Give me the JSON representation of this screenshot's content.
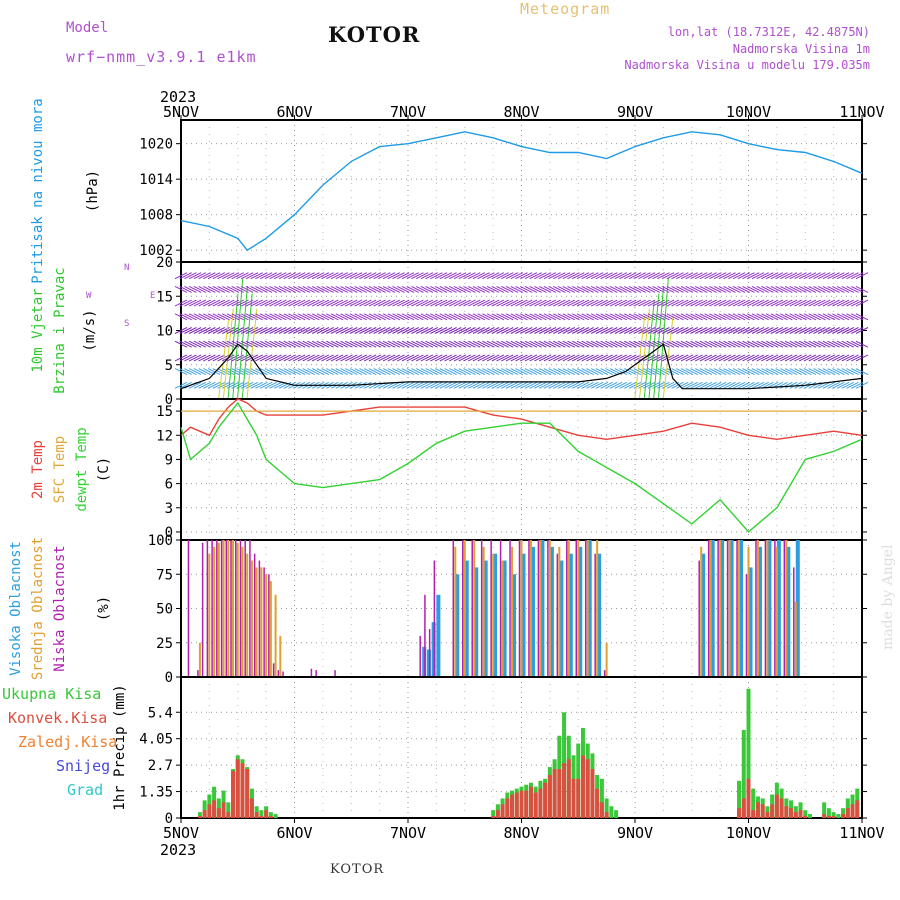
{
  "header": {
    "model_label": "Model",
    "model_name": "wrf−nmm_v3.9.1 e1km",
    "city": "KOTOR",
    "chart_title": "Meteogram",
    "coords": "lon,lat (18.7312E, 42.4875N)",
    "elevation": "Nadmorska Visina 1m",
    "model_elevation": "Nadmorska Visina u modelu 179.035m",
    "watermark": "made by Angel",
    "footer_city": "KOTOR"
  },
  "colors": {
    "pressure": "#1e9be6",
    "temp2m": "#e8403a",
    "sfc_temp": "#e0a83a",
    "dewpoint": "#33d233",
    "high_cloud": "#2a9ee0",
    "mid_cloud": "#e0a030",
    "low_cloud": "#b020b0",
    "total_precip": "#3ac83a",
    "conv_precip": "#d85040",
    "freezing_precip": "#f08030",
    "snow": "#4848e0",
    "hail": "#30c8c8",
    "header_purple": "#b050d0",
    "header_orange": "#e8c070"
  },
  "chart_data": [
    {
      "type": "line",
      "panel": "pressure",
      "ylabel_lines": [
        "Pritisak na nivou mora",
        "(hPa)"
      ],
      "ylim": [
        1000,
        1024
      ],
      "yticks": [
        1002,
        1008,
        1014,
        1020
      ],
      "x_hours": [
        0,
        6,
        12,
        14,
        18,
        24,
        30,
        36,
        42,
        48,
        54,
        60,
        66,
        72,
        78,
        84,
        90,
        96,
        102,
        108,
        114,
        120,
        126,
        132,
        138,
        144
      ],
      "series": [
        {
          "key": "pressure",
          "values": [
            1007,
            1006,
            1004,
            1002,
            1004,
            1008,
            1013,
            1017,
            1019.5,
            1020,
            1021,
            1022,
            1021,
            1019.5,
            1018.5,
            1018.5,
            1017.5,
            1019.5,
            1021,
            1022,
            1021.5,
            1020,
            1019,
            1018.5,
            1017,
            1015
          ]
        }
      ]
    },
    {
      "type": "wind",
      "panel": "wind",
      "ylabel_lines": [
        "10m Vjetar",
        "Brzina i Pravac",
        "(m/s)"
      ],
      "direction_key": [
        "W",
        "E",
        "N",
        "S"
      ],
      "ylim": [
        0,
        20
      ],
      "yticks": [
        0,
        5,
        10,
        15,
        20
      ],
      "x_hours": [
        0,
        6,
        8,
        10,
        12,
        14,
        16,
        18,
        24,
        36,
        48,
        60,
        72,
        84,
        90,
        94,
        98,
        100,
        102,
        104,
        106,
        108,
        120,
        132,
        144
      ],
      "series": [
        {
          "key": "speed",
          "values": [
            1.5,
            3,
            4.5,
            6,
            8,
            7,
            5,
            3,
            2,
            2,
            2.5,
            2.5,
            2.5,
            2.5,
            3,
            4,
            6,
            7,
            8,
            3,
            1.5,
            1.5,
            1.5,
            2,
            3
          ]
        }
      ]
    },
    {
      "type": "line",
      "panel": "temperature",
      "ylabel_lines": [
        "2m Temp",
        "SFC Temp",
        "dewpt Temp",
        "(C)"
      ],
      "ylim": [
        -1,
        16.5
      ],
      "yticks": [
        0,
        3,
        6,
        9,
        12,
        15
      ],
      "x_hours": [
        0,
        2,
        6,
        8,
        10,
        12,
        14,
        16,
        18,
        24,
        30,
        36,
        42,
        48,
        54,
        60,
        66,
        72,
        78,
        84,
        90,
        96,
        102,
        108,
        114,
        120,
        126,
        132,
        138,
        144
      ],
      "series": [
        {
          "key": "temp2m",
          "values": [
            12,
            13,
            12,
            14,
            15.5,
            16.5,
            16,
            15,
            14.5,
            14.5,
            14.5,
            15,
            15.5,
            15.5,
            15.5,
            15.5,
            14.5,
            14,
            13,
            12,
            11.5,
            12,
            12.5,
            13.5,
            13,
            12,
            11.5,
            12,
            12.5,
            12
          ]
        },
        {
          "key": "sfc_temp",
          "values": [
            15,
            15,
            15,
            15,
            15,
            15,
            15,
            15,
            15,
            15,
            15,
            15,
            15,
            15,
            15,
            15,
            15,
            15,
            15,
            15,
            15,
            15,
            15,
            15,
            15,
            15,
            15,
            15,
            15,
            15
          ]
        },
        {
          "key": "dewpoint",
          "values": [
            13,
            9,
            11,
            13,
            14.5,
            16,
            14,
            12,
            9,
            6,
            5.5,
            6,
            6.5,
            8.5,
            11,
            12.5,
            13,
            13.5,
            13.5,
            10,
            8,
            6,
            3.5,
            1,
            4,
            0,
            3,
            9,
            10,
            11.5
          ]
        }
      ]
    },
    {
      "type": "bar",
      "panel": "clouds",
      "ylabel_lines": [
        "Visoka Oblacnost",
        "Srednja Oblacnost",
        "Niska Oblacnost",
        "(%)"
      ],
      "ylim": [
        0,
        100
      ],
      "yticks": [
        0,
        25,
        50,
        75,
        100
      ],
      "x_hours_low": [
        2,
        4,
        5,
        6,
        7,
        8,
        9,
        10,
        11,
        12,
        13,
        14,
        15,
        16,
        17,
        18,
        19,
        20,
        21,
        22,
        28,
        29,
        33,
        51,
        52,
        53,
        54,
        58,
        60,
        62,
        64,
        66,
        68,
        70,
        72,
        74,
        76,
        78,
        80,
        82,
        84,
        86,
        88,
        90,
        110,
        112,
        114,
        116,
        118,
        120,
        122,
        124,
        126,
        128,
        130
      ],
      "series": [
        {
          "key": "high_cloud",
          "values": [
            0,
            0,
            0,
            0,
            0,
            0,
            0,
            0,
            0,
            0,
            0,
            0,
            0,
            0,
            0,
            0,
            0,
            0,
            0,
            0,
            0,
            0,
            0,
            22,
            20,
            40,
            60,
            75,
            85,
            80,
            85,
            90,
            85,
            75,
            90,
            95,
            100,
            95,
            85,
            90,
            95,
            100,
            90,
            0,
            90,
            100,
            100,
            100,
            100,
            80,
            95,
            100,
            100,
            95,
            100
          ]
        },
        {
          "key": "mid_cloud",
          "values": [
            0,
            25,
            0,
            90,
            95,
            98,
            100,
            100,
            100,
            98,
            95,
            90,
            85,
            80,
            80,
            75,
            70,
            60,
            30,
            0,
            0,
            0,
            0,
            0,
            0,
            0,
            0,
            95,
            100,
            100,
            95,
            90,
            85,
            95,
            100,
            100,
            100,
            100,
            95,
            100,
            100,
            100,
            100,
            25,
            95,
            100,
            100,
            100,
            100,
            95,
            100,
            100,
            95,
            100,
            55
          ]
        },
        {
          "key": "low_cloud",
          "values": [
            100,
            5,
            98,
            100,
            100,
            100,
            100,
            100,
            100,
            100,
            100,
            100,
            100,
            90,
            85,
            80,
            75,
            10,
            5,
            4,
            6,
            5,
            5,
            30,
            60,
            35,
            85,
            100,
            100,
            100,
            100,
            100,
            100,
            100,
            100,
            100,
            100,
            100,
            90,
            100,
            100,
            100,
            90,
            5,
            85,
            100,
            100,
            100,
            100,
            75,
            100,
            100,
            100,
            100,
            80
          ]
        }
      ]
    },
    {
      "type": "bar",
      "panel": "precipitation",
      "ylabel_lines": [
        "1hr Precip (mm)"
      ],
      "legend": [
        "Ukupna Kisa",
        "Konvek.Kisa",
        "Zaledj.Kisa",
        "Snijeg",
        "Grad"
      ],
      "ylim": [
        0,
        7.2
      ],
      "yticks": [
        0,
        1.35,
        2.7,
        4.05,
        5.4
      ],
      "x_hours_bars": [
        4,
        5,
        6,
        7,
        8,
        9,
        10,
        11,
        12,
        13,
        14,
        15,
        16,
        17,
        18,
        19,
        20,
        66,
        67,
        68,
        69,
        70,
        71,
        72,
        73,
        74,
        75,
        76,
        77,
        78,
        79,
        80,
        81,
        82,
        83,
        84,
        85,
        86,
        87,
        88,
        89,
        90,
        91,
        92,
        118,
        119,
        120,
        121,
        122,
        123,
        124,
        125,
        126,
        127,
        128,
        129,
        130,
        131,
        132,
        133,
        136,
        137,
        138,
        139,
        140,
        141,
        142,
        143
      ],
      "series": [
        {
          "key": "total_precip",
          "values": [
            0.3,
            0.9,
            1.2,
            1.6,
            1.0,
            1.4,
            0.8,
            2.5,
            3.2,
            3.0,
            2.6,
            1.5,
            0.6,
            0.4,
            0.6,
            0.3,
            0.2,
            0.4,
            0.7,
            1.0,
            1.3,
            1.4,
            1.5,
            1.6,
            1.7,
            1.8,
            1.6,
            1.9,
            2.0,
            2.6,
            3.0,
            4.2,
            5.4,
            4.2,
            3.2,
            3.8,
            4.6,
            3.8,
            3.3,
            2.2,
            2.0,
            1.0,
            0.6,
            0.4,
            1.9,
            4.5,
            6.6,
            1.5,
            1.1,
            1.0,
            0.6,
            1.2,
            1.8,
            1.5,
            1.0,
            0.9,
            0.6,
            0.8,
            0.4,
            0.2,
            0.8,
            0.5,
            0.3,
            0.2,
            0.5,
            1.0,
            1.2,
            1.5
          ]
        },
        {
          "key": "conv_precip",
          "values": [
            0.1,
            0.4,
            0.7,
            0.9,
            0.5,
            0.8,
            0.3,
            2.4,
            3.0,
            2.8,
            2.5,
            1.0,
            0.3,
            0.1,
            0.4,
            0.1,
            0.0,
            0.1,
            0.4,
            0.7,
            1.0,
            1.2,
            1.3,
            1.4,
            1.4,
            1.6,
            1.3,
            1.5,
            1.8,
            2.2,
            2.5,
            2.5,
            2.8,
            3.0,
            2.0,
            2.0,
            3.2,
            3.0,
            2.5,
            1.5,
            0.8,
            0.3,
            0.0,
            0.0,
            0.5,
            1.0,
            2.0,
            0.4,
            0.8,
            0.7,
            0.3,
            0.7,
            1.2,
            1.0,
            0.6,
            0.5,
            0.3,
            0.4,
            0.1,
            0.0,
            0.2,
            0.1,
            0.1,
            0.0,
            0.2,
            0.5,
            0.7,
            0.9
          ]
        }
      ]
    }
  ],
  "time_axis": {
    "year": "2023",
    "labels": [
      "5NOV",
      "6NOV",
      "7NOV",
      "8NOV",
      "9NOV",
      "10NOV",
      "11NOV"
    ],
    "label_hours": [
      0,
      24,
      48,
      72,
      96,
      120,
      144
    ],
    "range_hours": [
      0,
      144
    ]
  }
}
